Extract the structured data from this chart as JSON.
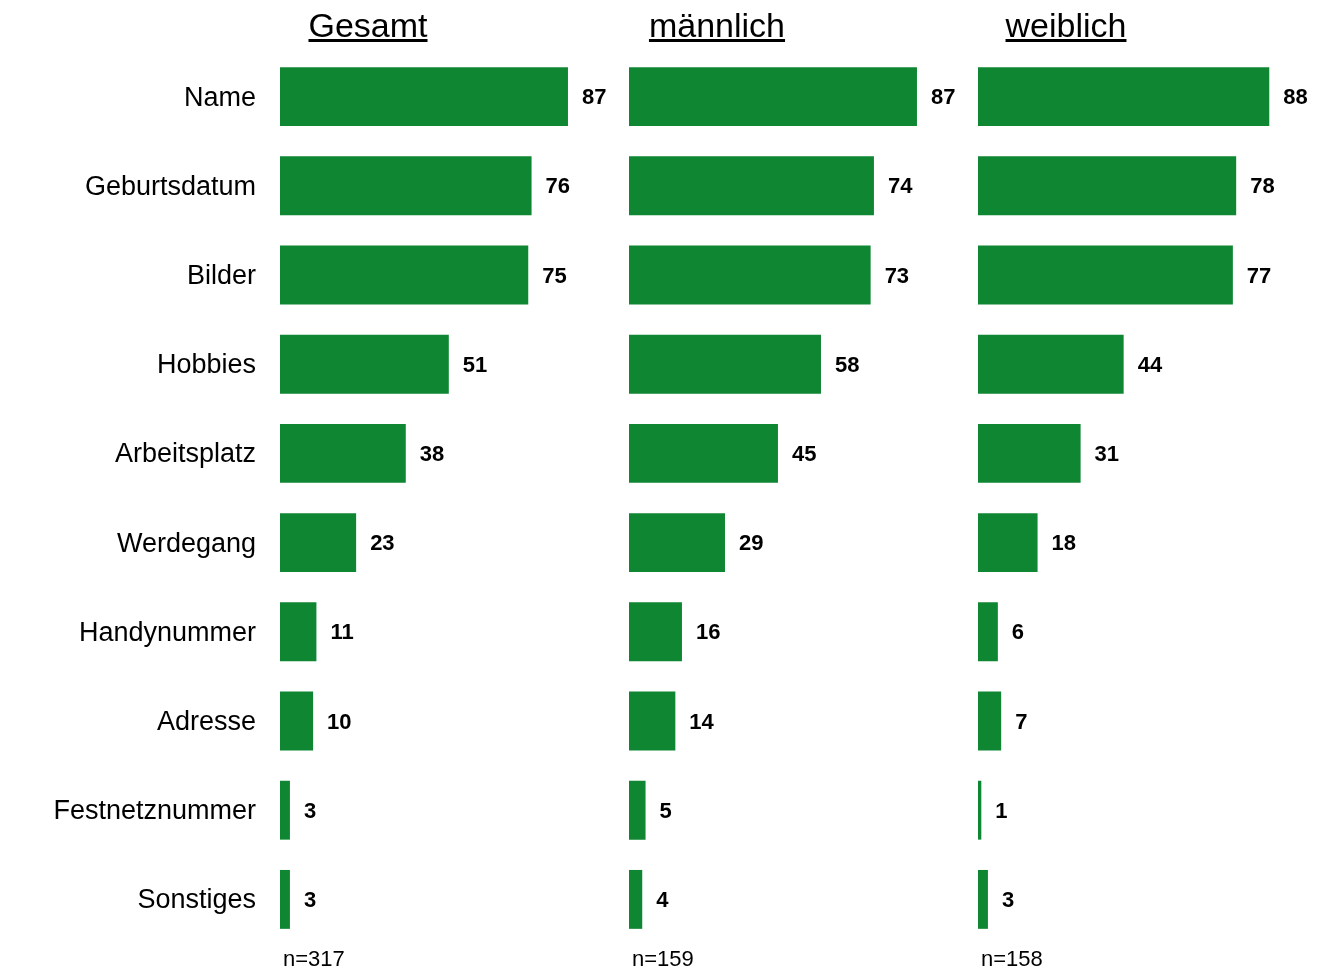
{
  "chart_data": [
    {
      "type": "bar",
      "orientation": "horizontal",
      "title": "Gesamt",
      "categories": [
        "Name",
        "Geburtsdatum",
        "Bilder",
        "Hobbies",
        "Arbeitsplatz",
        "Werdegang",
        "Handynummer",
        "Adresse",
        "Festnetznummer",
        "Sonstiges"
      ],
      "values": [
        87,
        76,
        75,
        51,
        38,
        23,
        11,
        10,
        3,
        3
      ],
      "color": "#0f8632",
      "data_labels": true,
      "grid": false,
      "tick_labels": "y",
      "annotations": [
        "n=317"
      ]
    },
    {
      "type": "bar",
      "orientation": "horizontal",
      "title": "männlich",
      "categories": [
        null,
        null,
        null,
        null,
        null,
        null,
        null,
        null,
        null,
        null
      ],
      "values": [
        87,
        74,
        73,
        58,
        45,
        29,
        16,
        14,
        5,
        4
      ],
      "color": "#0f8632",
      "data_labels": true,
      "grid": false,
      "tick_labels": false,
      "annotations": [
        "n=159"
      ]
    },
    {
      "type": "bar",
      "orientation": "horizontal",
      "title": "weiblich",
      "categories": [
        null,
        null,
        null,
        null,
        null,
        null,
        null,
        null,
        null,
        null
      ],
      "values": [
        88,
        78,
        77,
        44,
        31,
        18,
        6,
        7,
        1,
        3
      ],
      "color": "#0f8632",
      "data_labels": true,
      "grid": false,
      "tick_labels": false,
      "annotations": [
        "n=158"
      ]
    }
  ]
}
